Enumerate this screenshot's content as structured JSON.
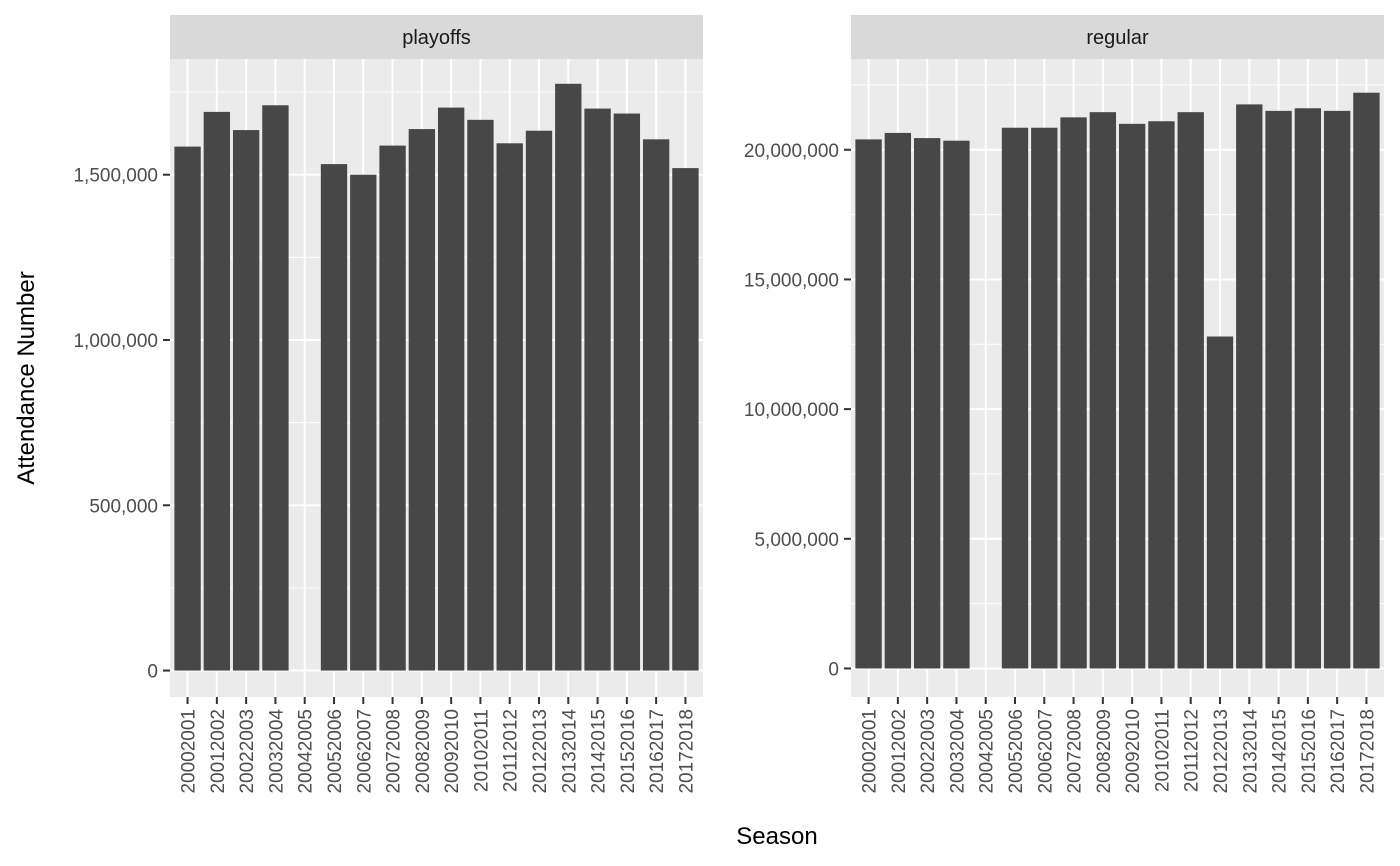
{
  "chart_data": {
    "type": "bar",
    "xlabel": "Season",
    "ylabel": "Attendance Number",
    "categories": [
      "20002001",
      "20012002",
      "20022003",
      "20032004",
      "20042005",
      "20052006",
      "20062007",
      "20072008",
      "20082009",
      "20092010",
      "20102011",
      "20112012",
      "20122013",
      "20132014",
      "20142015",
      "20152016",
      "20162017",
      "20172018"
    ],
    "grid": true,
    "colors": {
      "bar": "#474747",
      "panel": "#ebebeb",
      "strip": "#d9d9d9",
      "grid": "#ffffff"
    },
    "facets": [
      {
        "label": "playoffs",
        "ylim": [
          -80000,
          1850000
        ],
        "yticks": [
          0,
          500000,
          1000000,
          1500000
        ],
        "ytick_labels": [
          "0",
          "500,000",
          "1,000,000",
          "1,500,000"
        ],
        "values": [
          1585000,
          1690000,
          1635000,
          1710000,
          0,
          1532000,
          1500000,
          1588000,
          1638000,
          1703000,
          1666000,
          1595000,
          1633000,
          1775000,
          1700000,
          1685000,
          1607000,
          1520000
        ]
      },
      {
        "label": "regular",
        "ylim": [
          -1100000,
          23500000
        ],
        "yticks": [
          0,
          5000000,
          10000000,
          15000000,
          20000000
        ],
        "ytick_labels": [
          "0",
          "5,000,000",
          "10,000,000",
          "15,000,000",
          "20,000,000"
        ],
        "values": [
          20400000,
          20650000,
          20450000,
          20350000,
          0,
          20850000,
          20850000,
          21250000,
          21450000,
          21000000,
          21100000,
          21450000,
          12800000,
          21750000,
          21500000,
          21600000,
          21500000,
          22200000
        ]
      }
    ]
  }
}
